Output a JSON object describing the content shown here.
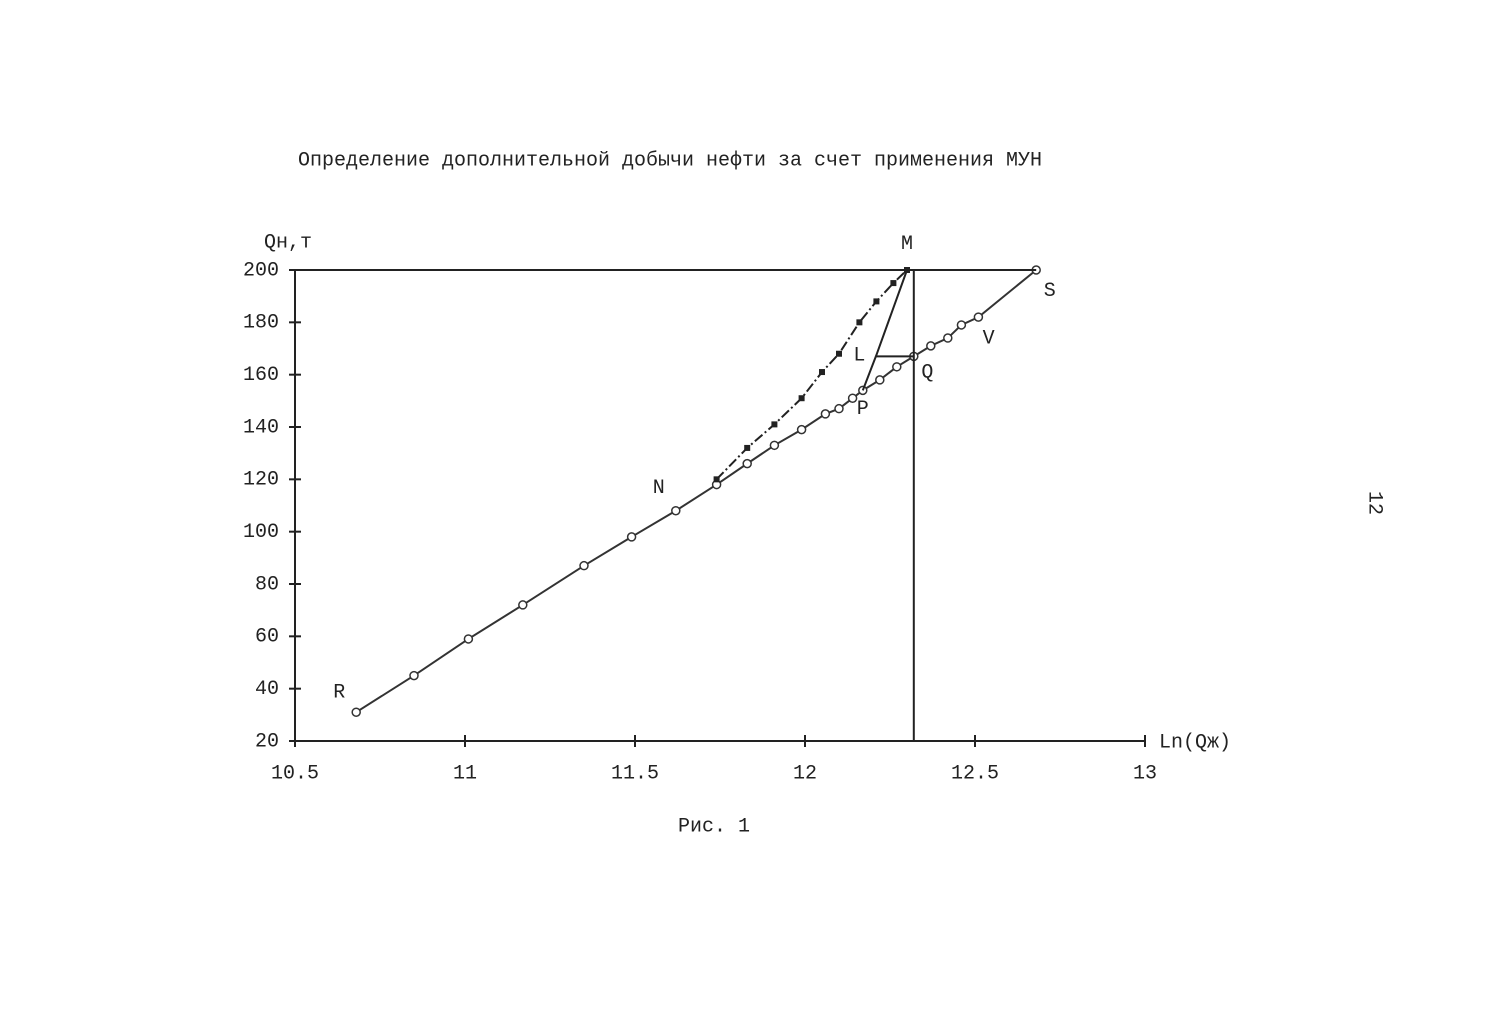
{
  "chart_data": {
    "type": "line",
    "title": "Определение дополнительной добычи нефти за счет применения МУН",
    "ylabel": "Qн,т",
    "xlabel": "Ln(Qж)",
    "caption": "Рис. 1",
    "page_number": "12",
    "xlim": [
      10.5,
      13
    ],
    "xticks": [
      10.5,
      11,
      11.5,
      12,
      12.5,
      13
    ],
    "ylim": [
      20,
      200
    ],
    "yticks": [
      20,
      40,
      60,
      80,
      100,
      120,
      140,
      160,
      180,
      200
    ],
    "series": [
      {
        "marker": "circle",
        "color": "#333",
        "x": [
          10.68,
          10.85,
          11.01,
          11.17,
          11.35,
          11.49,
          11.62,
          11.74,
          11.83,
          11.91,
          11.99,
          12.06,
          12.1,
          12.14,
          12.17,
          12.22,
          12.27,
          12.32,
          12.37,
          12.42,
          12.46,
          12.51,
          12.68
        ],
        "values": [
          31,
          45,
          59,
          72,
          87,
          98,
          108,
          118,
          126,
          133,
          139,
          145,
          147,
          151,
          154,
          158,
          163,
          167,
          171,
          174,
          179,
          182,
          200
        ]
      },
      {
        "marker": "star",
        "color": "#222",
        "x": [
          11.74,
          11.83,
          11.91,
          11.99,
          12.05,
          12.1,
          12.16,
          12.21,
          12.26,
          12.3
        ],
        "values": [
          120,
          132,
          141,
          151,
          161,
          168,
          180,
          188,
          195,
          200
        ]
      },
      {
        "marker": "none",
        "color": "#222",
        "x": [
          12.32,
          12.32
        ],
        "values": [
          20,
          200
        ]
      },
      {
        "marker": "none",
        "color": "#222",
        "x": [
          10.5,
          12.68
        ],
        "values": [
          200,
          200
        ]
      },
      {
        "marker": "none",
        "color": "#222",
        "x": [
          12.17,
          12.21,
          12.3
        ],
        "values": [
          154,
          167.5,
          200
        ]
      },
      {
        "marker": "none",
        "color": "#222",
        "x": [
          12.21,
          12.32
        ],
        "values": [
          167,
          167
        ]
      }
    ],
    "annotations": [
      {
        "text": "R",
        "x": 10.63,
        "y": 38.7
      },
      {
        "text": "N",
        "x": 11.57,
        "y": 116.7
      },
      {
        "text": "M",
        "x": 12.3,
        "y": 210
      },
      {
        "text": "L",
        "x": 12.16,
        "y": 167.5
      },
      {
        "text": "Q",
        "x": 12.36,
        "y": 161
      },
      {
        "text": "P",
        "x": 12.17,
        "y": 147
      },
      {
        "text": "S",
        "x": 12.72,
        "y": 192
      },
      {
        "text": "V",
        "x": 12.54,
        "y": 174
      }
    ]
  }
}
